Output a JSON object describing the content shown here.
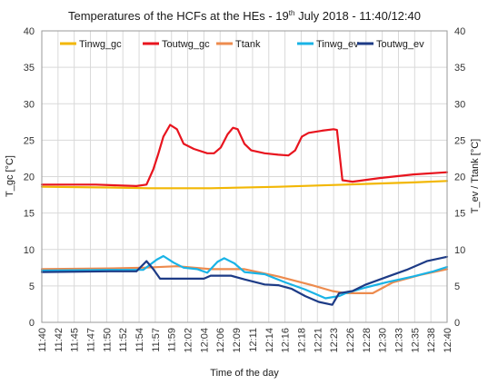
{
  "chart_data": {
    "type": "line",
    "title": {
      "prefix": "Temperatures of the HCFs at the HEs - 19",
      "superscript": "th",
      "suffix": " July 2018 - 11:40/12:40"
    },
    "xlabel": "Time of the day",
    "ylabel_left": "T_gc [°C]",
    "ylabel_right": "T_ev / Ttank [°C]",
    "ylim_left": [
      0,
      40
    ],
    "ylim_right": [
      0,
      40
    ],
    "y_ticks": [
      "0",
      "5",
      "10",
      "15",
      "20",
      "25",
      "30",
      "35",
      "40"
    ],
    "x_range": [
      0,
      60
    ],
    "x_ticks": [
      "11:40",
      "11:42",
      "11:45",
      "11:47",
      "11:50",
      "11:52",
      "11:54",
      "11:57",
      "11:59",
      "12:02",
      "12:04",
      "12:06",
      "12:09",
      "12:11",
      "12:14",
      "12:16",
      "12:18",
      "12:21",
      "12:23",
      "12:26",
      "12:28",
      "12:30",
      "12:33",
      "12:35",
      "12:38",
      "12:40"
    ],
    "grid": true,
    "legend_position": "top",
    "series": [
      {
        "name": "Tinwg_gc",
        "color": "#f2b705",
        "points": [
          [
            0,
            18.6
          ],
          [
            10,
            18.5
          ],
          [
            16,
            18.4
          ],
          [
            25,
            18.4
          ],
          [
            35,
            18.6
          ],
          [
            45,
            18.9
          ],
          [
            55,
            19.2
          ],
          [
            60,
            19.4
          ]
        ]
      },
      {
        "name": "Toutwg_gc",
        "color": "#e8141e",
        "points": [
          [
            0,
            18.9
          ],
          [
            8,
            18.9
          ],
          [
            14,
            18.7
          ],
          [
            15.5,
            18.9
          ],
          [
            16.5,
            21
          ],
          [
            17.2,
            23
          ],
          [
            18,
            25.5
          ],
          [
            19,
            27.1
          ],
          [
            20,
            26.5
          ],
          [
            21,
            24.5
          ],
          [
            22.5,
            23.8
          ],
          [
            24.5,
            23.2
          ],
          [
            25.5,
            23.2
          ],
          [
            26.5,
            24
          ],
          [
            27.5,
            25.8
          ],
          [
            28.3,
            26.7
          ],
          [
            29,
            26.5
          ],
          [
            30,
            24.5
          ],
          [
            31,
            23.6
          ],
          [
            33,
            23.2
          ],
          [
            35,
            23.0
          ],
          [
            36.5,
            22.9
          ],
          [
            37.5,
            23.6
          ],
          [
            38.5,
            25.5
          ],
          [
            39.5,
            26.0
          ],
          [
            41.5,
            26.3
          ],
          [
            43.2,
            26.5
          ],
          [
            43.7,
            26.4
          ],
          [
            44.5,
            19.5
          ],
          [
            46,
            19.3
          ],
          [
            50,
            19.8
          ],
          [
            55,
            20.3
          ],
          [
            60,
            20.6
          ]
        ]
      },
      {
        "name": "Ttank",
        "color": "#ed8b4e",
        "points": [
          [
            0,
            7.3
          ],
          [
            10,
            7.4
          ],
          [
            15,
            7.5
          ],
          [
            20,
            7.7
          ],
          [
            25,
            7.3
          ],
          [
            30,
            7.3
          ],
          [
            35,
            6.3
          ],
          [
            40,
            5.1
          ],
          [
            43,
            4.3
          ],
          [
            45,
            4.0
          ],
          [
            49,
            4.0
          ],
          [
            52,
            5.5
          ],
          [
            56,
            6.5
          ],
          [
            60,
            7.3
          ]
        ]
      },
      {
        "name": "Tinwg_ev",
        "color": "#19b3e6",
        "points": [
          [
            0,
            7.1
          ],
          [
            10,
            7.2
          ],
          [
            15,
            7.2
          ],
          [
            17,
            8.6
          ],
          [
            18,
            9.1
          ],
          [
            19.5,
            8.2
          ],
          [
            21,
            7.5
          ],
          [
            23,
            7.3
          ],
          [
            24.5,
            6.8
          ],
          [
            26,
            8.3
          ],
          [
            27,
            8.8
          ],
          [
            28.5,
            8.1
          ],
          [
            30,
            6.9
          ],
          [
            33,
            6.6
          ],
          [
            36,
            5.5
          ],
          [
            39,
            4.5
          ],
          [
            42,
            3.3
          ],
          [
            44,
            3.6
          ],
          [
            45,
            4.0
          ],
          [
            48,
            4.8
          ],
          [
            51,
            5.5
          ],
          [
            55,
            6.3
          ],
          [
            58,
            7.0
          ],
          [
            60,
            7.6
          ]
        ]
      },
      {
        "name": "Toutwg_ev",
        "color": "#1d3b86",
        "points": [
          [
            0,
            6.9
          ],
          [
            10,
            7.0
          ],
          [
            14,
            7.0
          ],
          [
            15.5,
            8.4
          ],
          [
            16.5,
            7.3
          ],
          [
            17.5,
            6.0
          ],
          [
            22,
            6.0
          ],
          [
            24,
            6.0
          ],
          [
            25,
            6.4
          ],
          [
            28,
            6.4
          ],
          [
            30,
            5.9
          ],
          [
            33,
            5.2
          ],
          [
            35,
            5.1
          ],
          [
            37,
            4.6
          ],
          [
            39,
            3.6
          ],
          [
            41,
            2.8
          ],
          [
            43,
            2.4
          ],
          [
            44,
            4.0
          ],
          [
            46,
            4.3
          ],
          [
            48,
            5.2
          ],
          [
            51,
            6.2
          ],
          [
            54,
            7.2
          ],
          [
            57,
            8.4
          ],
          [
            60,
            9.0
          ]
        ]
      }
    ]
  }
}
